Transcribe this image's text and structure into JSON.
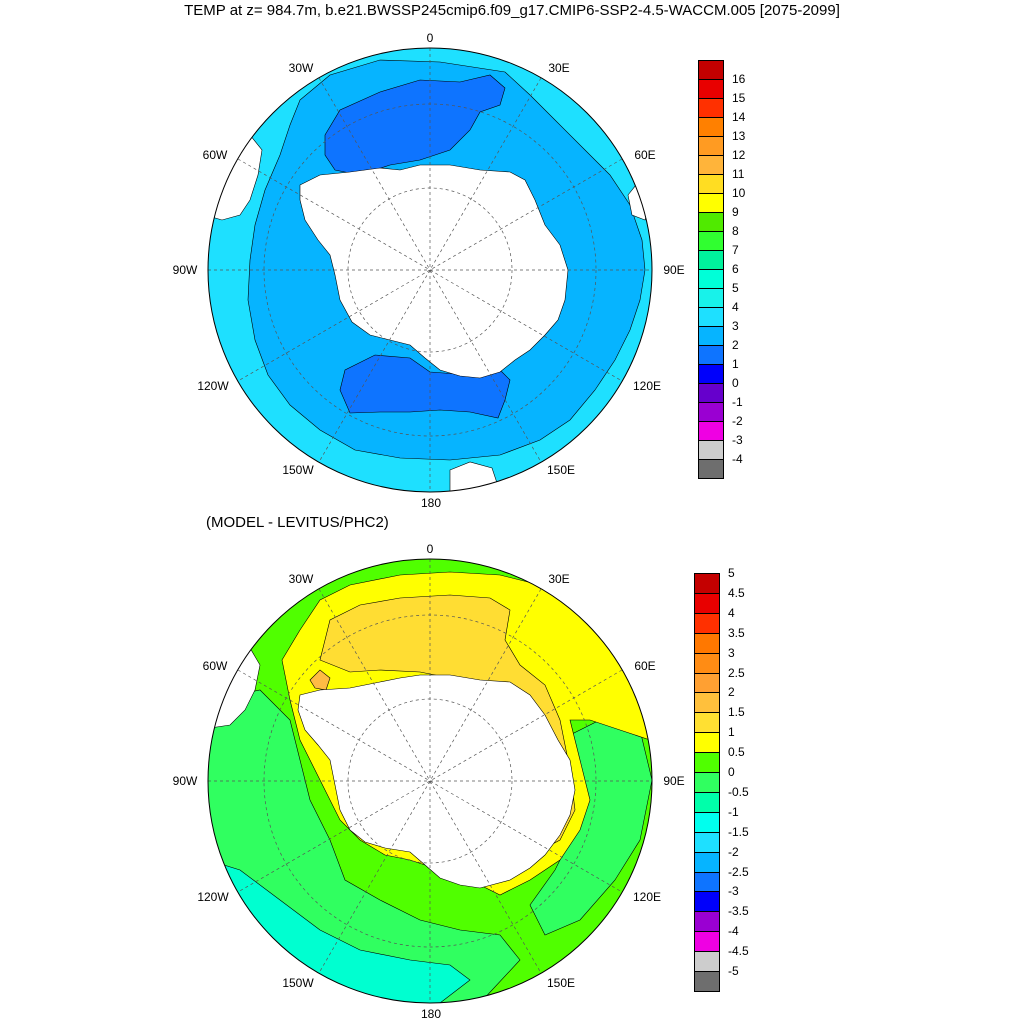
{
  "title": "TEMP at z= 984.7m, b.e21.BWSSP245cmip6.f09_g17.CMIP6-SSP2-4.5-WACCM.005 [2075-2099]",
  "subtitle": "(MODEL - LEVITUS/PHC2)",
  "longitude_labels": {
    "top": "0",
    "top_right": "30E",
    "right_upper": "60E",
    "right": "90E",
    "right_lower": "120E",
    "bottom_right": "150E",
    "bottom": "180",
    "bottom_left": "150W",
    "left_lower": "120W",
    "left": "90W",
    "left_upper": "60W",
    "top_left": "30W"
  },
  "colors": {
    "land": "#ffffff",
    "outline": "#000000",
    "grid": "#555555"
  },
  "panel1": {
    "name": "model-temperature",
    "colorbar": {
      "labels": [
        "-4",
        "-3",
        "-2",
        "-1",
        "0",
        "1",
        "2",
        "3",
        "4",
        "5",
        "6",
        "7",
        "8",
        "9",
        "10",
        "11",
        "12",
        "13",
        "14",
        "15",
        "16"
      ],
      "colors": [
        "#6e6e6e",
        "#cdcdcd",
        "#ef00e3",
        "#9a00d2",
        "#6600cc",
        "#0000fb",
        "#0e74ff",
        "#06b4ff",
        "#1ee0ff",
        "#18f2ea",
        "#00ffd8",
        "#00f29c",
        "#30ff30",
        "#50ea00",
        "#ffff00",
        "#ffdd22",
        "#ffb43a",
        "#ff9b22",
        "#ff8000",
        "#ff3000",
        "#e80000",
        "#c40000"
      ]
    },
    "fields": [
      {
        "level": "3-4",
        "color": "#1ee0ff"
      },
      {
        "level": "2-3",
        "color": "#06b4ff"
      },
      {
        "level": "1-2",
        "color": "#0e74ff"
      }
    ]
  },
  "panel2": {
    "name": "model-minus-levitus",
    "colorbar": {
      "labels": [
        "-5",
        "-4.5",
        "-4",
        "-3.5",
        "-3",
        "-2.5",
        "-2",
        "-1.5",
        "-1",
        "-0.5",
        "0",
        "0.5",
        "1",
        "1.5",
        "2",
        "2.5",
        "3",
        "3.5",
        "4",
        "4.5",
        "5"
      ],
      "colors": [
        "#6e6e6e",
        "#cdcdcd",
        "#ef00e3",
        "#9a00d2",
        "#0000fb",
        "#0e74ff",
        "#06b4ff",
        "#1ee0ff",
        "#00ffee",
        "#00ffaa",
        "#30ff60",
        "#50ff00",
        "#ffff00",
        "#ffe032",
        "#ffc03c",
        "#ffa032",
        "#ff8c14",
        "#ff7800",
        "#ff3000",
        "#e80000",
        "#c40000"
      ]
    },
    "fields": [
      {
        "level": "0.5-1",
        "color": "#50ff00"
      },
      {
        "level": "0-0.5",
        "color": "#30ff60"
      },
      {
        "level": "-0.5-0",
        "color": "#00ffd0"
      },
      {
        "level": "1-1.5",
        "color": "#ffff00"
      },
      {
        "level": "1.5-2",
        "color": "#ffdd33"
      },
      {
        "level": "2-2.5",
        "color": "#ffbb44"
      }
    ]
  }
}
